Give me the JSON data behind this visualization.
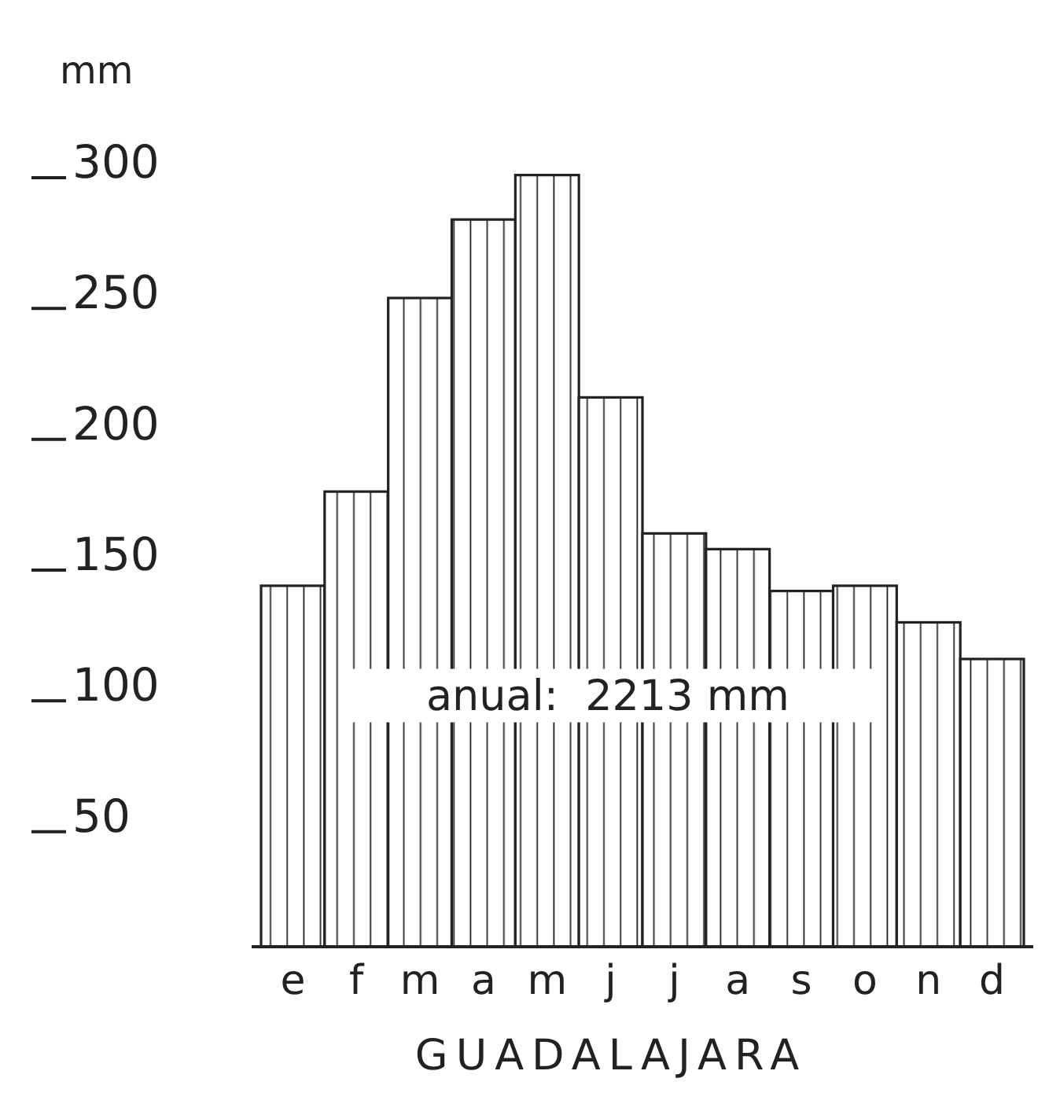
{
  "chart_data": {
    "type": "bar",
    "title": "GUADALAJARA",
    "ylabel": "mm",
    "categories": [
      "e",
      "f",
      "m",
      "a",
      "m",
      "j",
      "j",
      "a",
      "s",
      "o",
      "n",
      "d"
    ],
    "values": [
      138,
      174,
      248,
      278,
      295,
      210,
      158,
      152,
      136,
      138,
      124,
      110
    ],
    "color": "#222222",
    "ylim": [
      0,
      300
    ],
    "yticks": [
      50,
      100,
      150,
      200,
      250,
      300
    ],
    "grid": false,
    "annotations": [
      "anual:  2213 mm"
    ]
  }
}
